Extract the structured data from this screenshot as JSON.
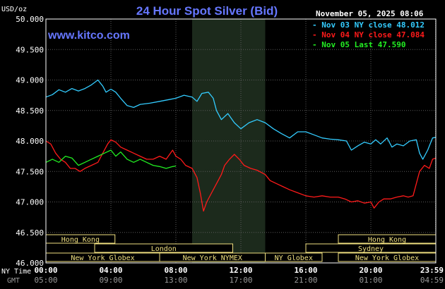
{
  "header": {
    "unit": "USD/oz",
    "title": "24 Hour Spot Silver (Bid)",
    "date": "November 05, 2025 08:06",
    "site": "www.kitco.com"
  },
  "legend": [
    {
      "label": "Nov 03 NY close 48.012",
      "color": "#33ccff"
    },
    {
      "label": "Nov 04 NY close 47.084",
      "color": "#ff1a1a"
    },
    {
      "label": "Nov 05 Last 47.590",
      "color": "#22ee22"
    }
  ],
  "colors": {
    "background": "#000000",
    "plot_border": "#ffffff",
    "grid": "#5a5a5a",
    "ny_session_shade": "#1c2a1c",
    "title": "#6677ff",
    "site": "#6677ff",
    "session_box_fill": "#000000",
    "session_box_border": "#f0e080",
    "session_text": "#f0e080",
    "axis_text": "#ffffff",
    "gmt_text": "#9a9a9a"
  },
  "markets": [
    {
      "label": "Hong Kong",
      "row": 0,
      "start": 0,
      "end": 4.25
    },
    {
      "label": "Hong Kong",
      "row": 0,
      "start": 18.0,
      "end": 24.0
    },
    {
      "label": "London",
      "row": 1,
      "start": 3.0,
      "end": 11.5
    },
    {
      "label": "Sydney",
      "row": 1,
      "start": 16.0,
      "end": 24.0
    },
    {
      "label": "New York Globex",
      "row": 2,
      "start": 0,
      "end": 7.0
    },
    {
      "label": "New York NYMEX",
      "row": 2,
      "start": 7.0,
      "end": 13.5
    },
    {
      "label": "NY Globex",
      "row": 2,
      "start": 13.5,
      "end": 17.0
    },
    {
      "label": "New York Globex",
      "row": 2,
      "start": 18.0,
      "end": 24.0
    }
  ],
  "x_axis": {
    "row_labels": [
      "NY Time",
      "GMT"
    ],
    "ny_ticks": [
      {
        "hour": 0,
        "label": "00:00"
      },
      {
        "hour": 4,
        "label": "04:00"
      },
      {
        "hour": 8,
        "label": "08:00"
      },
      {
        "hour": 12,
        "label": "12:00"
      },
      {
        "hour": 16,
        "label": "16:00"
      },
      {
        "hour": 20,
        "label": "20:00"
      },
      {
        "hour": 23.983,
        "label": "23:59"
      }
    ],
    "gmt_ticks": [
      "05:00",
      "09:00",
      "13:00",
      "17:00",
      "21:00",
      "01:00",
      "04:59"
    ]
  },
  "chart_data": {
    "type": "line",
    "title": "24 Hour Spot Silver (Bid)",
    "ylabel": "USD/oz",
    "xlabel": "NY Time / GMT",
    "xlim": [
      0,
      24
    ],
    "ylim": [
      46.0,
      50.0
    ],
    "y_ticks": [
      {
        "value": 46.0,
        "label": "46.000"
      },
      {
        "value": 46.5,
        "label": "46.500"
      },
      {
        "value": 47.0,
        "label": "47.000"
      },
      {
        "value": 47.5,
        "label": "47.500"
      },
      {
        "value": 48.0,
        "label": "48.000"
      },
      {
        "value": 48.5,
        "label": "48.500"
      },
      {
        "value": 49.0,
        "label": "49.000"
      },
      {
        "value": 49.5,
        "label": "49.500"
      },
      {
        "value": 50.0,
        "label": "50.000"
      }
    ],
    "grid": true,
    "shaded_x_range": [
      9.0,
      13.5
    ],
    "series": [
      {
        "name": "Nov 03 NY close 48.012",
        "color": "#33ccff",
        "points": [
          [
            0,
            48.72
          ],
          [
            0.4,
            48.76
          ],
          [
            0.8,
            48.84
          ],
          [
            1.2,
            48.8
          ],
          [
            1.6,
            48.86
          ],
          [
            2.0,
            48.82
          ],
          [
            2.4,
            48.86
          ],
          [
            2.8,
            48.92
          ],
          [
            3.2,
            49.0
          ],
          [
            3.5,
            48.9
          ],
          [
            3.7,
            48.8
          ],
          [
            4.0,
            48.85
          ],
          [
            4.3,
            48.8
          ],
          [
            4.6,
            48.7
          ],
          [
            5.0,
            48.58
          ],
          [
            5.4,
            48.55
          ],
          [
            5.8,
            48.6
          ],
          [
            6.4,
            48.62
          ],
          [
            7.0,
            48.65
          ],
          [
            7.6,
            48.68
          ],
          [
            8.0,
            48.7
          ],
          [
            8.5,
            48.75
          ],
          [
            9.0,
            48.72
          ],
          [
            9.3,
            48.65
          ],
          [
            9.6,
            48.78
          ],
          [
            10.0,
            48.8
          ],
          [
            10.3,
            48.7
          ],
          [
            10.5,
            48.5
          ],
          [
            10.8,
            48.35
          ],
          [
            11.2,
            48.45
          ],
          [
            11.6,
            48.3
          ],
          [
            12.0,
            48.2
          ],
          [
            12.5,
            48.3
          ],
          [
            13.0,
            48.35
          ],
          [
            13.5,
            48.3
          ],
          [
            14.0,
            48.2
          ],
          [
            14.5,
            48.12
          ],
          [
            15.0,
            48.05
          ],
          [
            15.5,
            48.15
          ],
          [
            16.0,
            48.15
          ],
          [
            16.5,
            48.1
          ],
          [
            17.0,
            48.05
          ],
          [
            17.5,
            48.03
          ],
          [
            18.0,
            48.02
          ],
          [
            18.5,
            48.0
          ],
          [
            18.8,
            47.85
          ],
          [
            19.2,
            47.92
          ],
          [
            19.6,
            47.98
          ],
          [
            20.0,
            47.95
          ],
          [
            20.3,
            48.02
          ],
          [
            20.6,
            47.95
          ],
          [
            21.0,
            48.05
          ],
          [
            21.3,
            47.9
          ],
          [
            21.6,
            47.95
          ],
          [
            22.0,
            47.92
          ],
          [
            22.4,
            48.0
          ],
          [
            22.8,
            48.02
          ],
          [
            23.0,
            47.8
          ],
          [
            23.2,
            47.7
          ],
          [
            23.5,
            47.85
          ],
          [
            23.8,
            48.05
          ],
          [
            24.0,
            48.06
          ]
        ]
      },
      {
        "name": "Nov 04 NY close 47.084",
        "color": "#ff1a1a",
        "points": [
          [
            0,
            48.0
          ],
          [
            0.3,
            47.95
          ],
          [
            0.6,
            47.8
          ],
          [
            0.9,
            47.7
          ],
          [
            1.2,
            47.65
          ],
          [
            1.5,
            47.55
          ],
          [
            1.8,
            47.55
          ],
          [
            2.1,
            47.5
          ],
          [
            2.4,
            47.55
          ],
          [
            2.8,
            47.6
          ],
          [
            3.2,
            47.65
          ],
          [
            3.5,
            47.8
          ],
          [
            3.8,
            47.95
          ],
          [
            4.0,
            48.02
          ],
          [
            4.3,
            47.98
          ],
          [
            4.6,
            47.9
          ],
          [
            5.0,
            47.85
          ],
          [
            5.4,
            47.8
          ],
          [
            5.8,
            47.75
          ],
          [
            6.2,
            47.7
          ],
          [
            6.6,
            47.7
          ],
          [
            7.0,
            47.75
          ],
          [
            7.4,
            47.7
          ],
          [
            7.8,
            47.85
          ],
          [
            8.0,
            47.75
          ],
          [
            8.3,
            47.7
          ],
          [
            8.6,
            47.6
          ],
          [
            9.0,
            47.55
          ],
          [
            9.3,
            47.4
          ],
          [
            9.5,
            47.15
          ],
          [
            9.7,
            46.85
          ],
          [
            9.9,
            47.0
          ],
          [
            10.2,
            47.15
          ],
          [
            10.5,
            47.3
          ],
          [
            10.8,
            47.45
          ],
          [
            11.0,
            47.6
          ],
          [
            11.3,
            47.7
          ],
          [
            11.6,
            47.78
          ],
          [
            11.9,
            47.7
          ],
          [
            12.2,
            47.6
          ],
          [
            12.6,
            47.55
          ],
          [
            13.0,
            47.52
          ],
          [
            13.5,
            47.45
          ],
          [
            13.8,
            47.35
          ],
          [
            14.2,
            47.3
          ],
          [
            14.6,
            47.25
          ],
          [
            15.0,
            47.2
          ],
          [
            15.5,
            47.15
          ],
          [
            16.0,
            47.1
          ],
          [
            16.5,
            47.08
          ],
          [
            17.0,
            47.1
          ],
          [
            17.5,
            47.08
          ],
          [
            18.0,
            47.08
          ],
          [
            18.4,
            47.05
          ],
          [
            18.8,
            47.0
          ],
          [
            19.2,
            47.02
          ],
          [
            19.6,
            46.98
          ],
          [
            20.0,
            47.0
          ],
          [
            20.2,
            46.9
          ],
          [
            20.5,
            47.0
          ],
          [
            20.8,
            47.05
          ],
          [
            21.2,
            47.05
          ],
          [
            21.6,
            47.08
          ],
          [
            22.0,
            47.1
          ],
          [
            22.3,
            47.08
          ],
          [
            22.6,
            47.1
          ],
          [
            23.0,
            47.5
          ],
          [
            23.3,
            47.6
          ],
          [
            23.6,
            47.55
          ],
          [
            23.8,
            47.7
          ],
          [
            24.0,
            47.72
          ]
        ]
      },
      {
        "name": "Nov 05 Last 47.590",
        "color": "#22ee22",
        "points": [
          [
            0,
            47.65
          ],
          [
            0.4,
            47.7
          ],
          [
            0.8,
            47.65
          ],
          [
            1.2,
            47.75
          ],
          [
            1.6,
            47.72
          ],
          [
            2.0,
            47.6
          ],
          [
            2.4,
            47.65
          ],
          [
            2.8,
            47.7
          ],
          [
            3.2,
            47.75
          ],
          [
            3.6,
            47.8
          ],
          [
            4.0,
            47.85
          ],
          [
            4.3,
            47.75
          ],
          [
            4.6,
            47.82
          ],
          [
            5.0,
            47.7
          ],
          [
            5.4,
            47.65
          ],
          [
            5.8,
            47.7
          ],
          [
            6.2,
            47.65
          ],
          [
            6.6,
            47.6
          ],
          [
            7.0,
            47.58
          ],
          [
            7.4,
            47.55
          ],
          [
            7.8,
            47.58
          ],
          [
            8.0,
            47.59
          ]
        ]
      }
    ]
  }
}
